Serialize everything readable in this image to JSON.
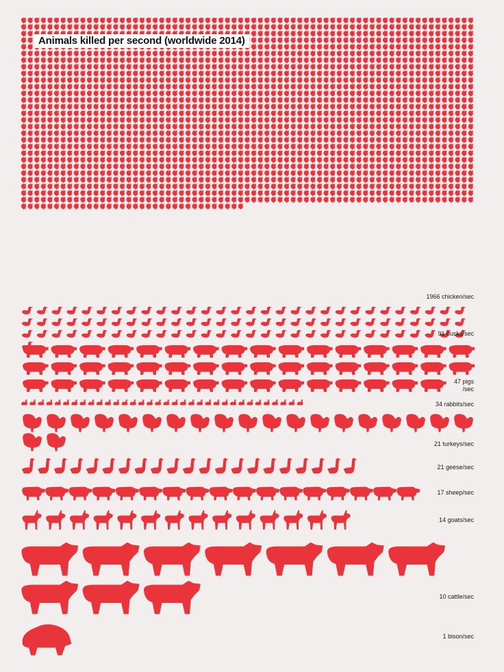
{
  "chart_data": {
    "type": "pictogram",
    "title": "Animals killed per second (worldwide 2014)",
    "unit_label": "/sec",
    "color": "#e8343a",
    "series": [
      {
        "animal": "chicken",
        "value": 1966,
        "label": "1966 chicken/sec",
        "icon": "chicken-icon"
      },
      {
        "animal": "ducks",
        "value": 91,
        "label": "91 ducks/sec",
        "icon": "duck-icon"
      },
      {
        "animal": "pigs",
        "value": 47,
        "label_line1": "47 pigs",
        "label_line2": "/sec",
        "icon": "pig-icon"
      },
      {
        "animal": "rabbits",
        "value": 34,
        "label": "34 rabbits/sec",
        "icon": "rabbit-icon"
      },
      {
        "animal": "turkeys",
        "value": 21,
        "label": "21 turkeys/sec",
        "icon": "turkey-icon"
      },
      {
        "animal": "geese",
        "value": 21,
        "label": "21 geese/sec",
        "icon": "goose-icon"
      },
      {
        "animal": "sheep",
        "value": 17,
        "label": "17 sheep/sec",
        "icon": "sheep-icon"
      },
      {
        "animal": "goats",
        "value": 14,
        "label": "14 goats/sec",
        "icon": "goat-icon"
      },
      {
        "animal": "cattle",
        "value": 10,
        "label": "10 cattle/sec",
        "icon": "cattle-icon"
      },
      {
        "animal": "bison",
        "value": 1,
        "label": "1 bison/sec",
        "icon": "bison-icon"
      }
    ]
  }
}
